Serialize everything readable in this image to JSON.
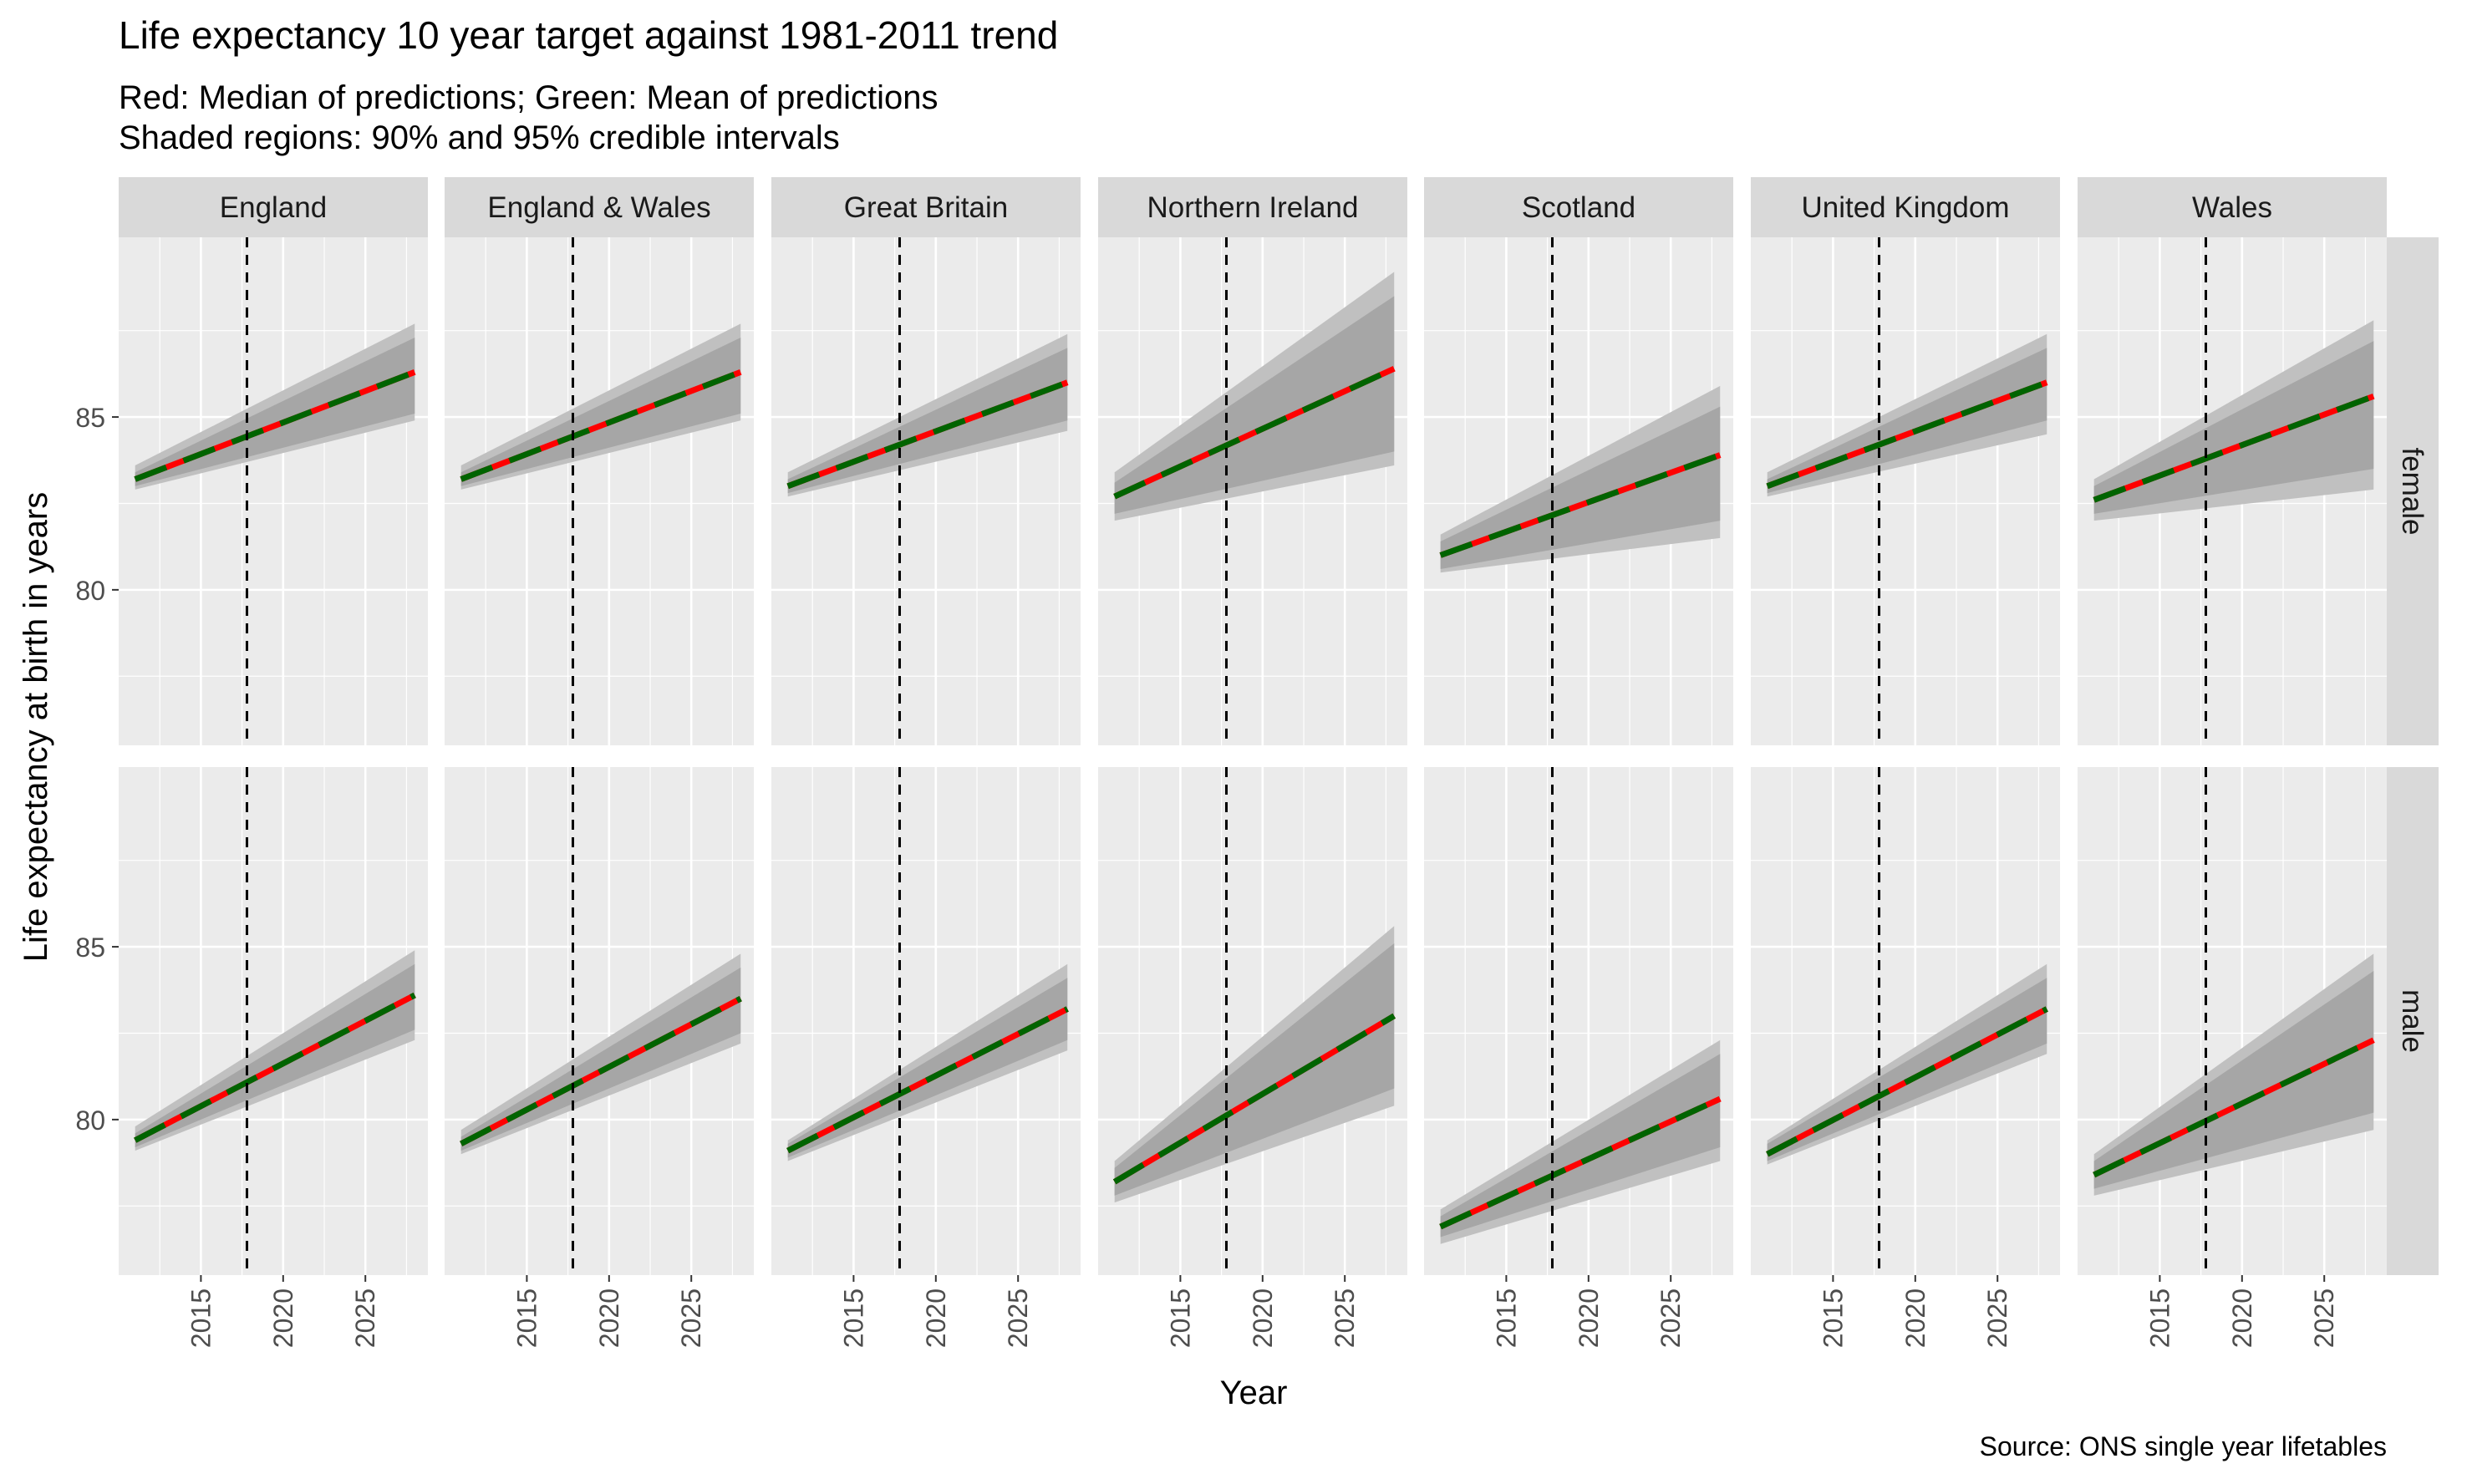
{
  "title": "Life expectancy 10 year target against 1981-2011 trend",
  "subtitle_lines": [
    "Red: Median of predictions; Green: Mean of predictions",
    "Shaded regions: 90% and 95% credible intervals"
  ],
  "caption": "Source: ONS single year lifetables",
  "colors": {
    "panel_bg": "#EBEBEB",
    "strip_bg": "#D9D9D9",
    "grid": "#FFFFFF",
    "band95": "#C0C0C0",
    "band90": "#A6A6A6",
    "median": "#FF0000",
    "mean": "#006400",
    "vline": "#000000",
    "text": "#000000",
    "tick_text": "#4D4D4D"
  },
  "chart_data": {
    "type": "line",
    "xlabel": "Year",
    "ylabel": "Life expectancy at birth in years",
    "xlim": [
      2010,
      2028.8
    ],
    "x_ticks": [
      2015,
      2020,
      2025
    ],
    "vline_x": 2017.8,
    "x_range": [
      2011,
      2028
    ],
    "facet_columns": [
      "England",
      "England & Wales",
      "Great Britain",
      "Northern Ireland",
      "Scotland",
      "United Kingdom",
      "Wales"
    ],
    "facet_rows": [
      {
        "label": "female",
        "ylim": [
          75.5,
          90.2
        ],
        "y_ticks": [
          80,
          85
        ],
        "series": [
          {
            "region": "England",
            "start": 83.2,
            "end": 86.3,
            "lo95": [
              82.9,
              84.9
            ],
            "hi95": [
              83.6,
              87.7
            ],
            "lo90": [
              83.0,
              85.1
            ],
            "hi90": [
              83.4,
              87.3
            ]
          },
          {
            "region": "England & Wales",
            "start": 83.2,
            "end": 86.3,
            "lo95": [
              82.9,
              84.9
            ],
            "hi95": [
              83.6,
              87.7
            ],
            "lo90": [
              83.0,
              85.1
            ],
            "hi90": [
              83.4,
              87.3
            ]
          },
          {
            "region": "Great Britain",
            "start": 83.0,
            "end": 86.0,
            "lo95": [
              82.7,
              84.6
            ],
            "hi95": [
              83.4,
              87.4
            ],
            "lo90": [
              82.8,
              84.9
            ],
            "hi90": [
              83.2,
              87.0
            ]
          },
          {
            "region": "Northern Ireland",
            "start": 82.7,
            "end": 86.4,
            "lo95": [
              82.0,
              83.6
            ],
            "hi95": [
              83.4,
              89.2
            ],
            "lo90": [
              82.2,
              84.0
            ],
            "hi90": [
              83.1,
              88.5
            ]
          },
          {
            "region": "Scotland",
            "start": 81.0,
            "end": 83.9,
            "lo95": [
              80.5,
              81.5
            ],
            "hi95": [
              81.6,
              85.9
            ],
            "lo90": [
              80.6,
              82.0
            ],
            "hi90": [
              81.4,
              85.3
            ]
          },
          {
            "region": "United Kingdom",
            "start": 83.0,
            "end": 86.0,
            "lo95": [
              82.7,
              84.5
            ],
            "hi95": [
              83.4,
              87.4
            ],
            "lo90": [
              82.8,
              84.9
            ],
            "hi90": [
              83.2,
              87.0
            ]
          },
          {
            "region": "Wales",
            "start": 82.6,
            "end": 85.6,
            "lo95": [
              82.0,
              82.9
            ],
            "hi95": [
              83.2,
              87.8
            ],
            "lo90": [
              82.2,
              83.5
            ],
            "hi90": [
              83.0,
              87.2
            ]
          }
        ]
      },
      {
        "label": "male",
        "ylim": [
          75.5,
          90.2
        ],
        "y_ticks": [
          80,
          85
        ],
        "series": [
          {
            "region": "England",
            "start": 79.4,
            "end": 83.6,
            "lo95": [
              79.1,
              82.3
            ],
            "hi95": [
              79.8,
              84.9
            ],
            "lo90": [
              79.2,
              82.6
            ],
            "hi90": [
              79.6,
              84.5
            ]
          },
          {
            "region": "England & Wales",
            "start": 79.3,
            "end": 83.5,
            "lo95": [
              79.0,
              82.2
            ],
            "hi95": [
              79.7,
              84.8
            ],
            "lo90": [
              79.1,
              82.5
            ],
            "hi90": [
              79.5,
              84.4
            ]
          },
          {
            "region": "Great Britain",
            "start": 79.1,
            "end": 83.2,
            "lo95": [
              78.8,
              82.0
            ],
            "hi95": [
              79.4,
              84.5
            ],
            "lo90": [
              78.9,
              82.3
            ],
            "hi90": [
              79.3,
              84.1
            ]
          },
          {
            "region": "Northern Ireland",
            "start": 78.2,
            "end": 83.0,
            "lo95": [
              77.6,
              80.4
            ],
            "hi95": [
              78.8,
              85.6
            ],
            "lo90": [
              77.8,
              80.9
            ],
            "hi90": [
              78.6,
              85.1
            ]
          },
          {
            "region": "Scotland",
            "start": 76.9,
            "end": 80.6,
            "lo95": [
              76.4,
              78.8
            ],
            "hi95": [
              77.4,
              82.3
            ],
            "lo90": [
              76.6,
              79.2
            ],
            "hi90": [
              77.2,
              81.9
            ]
          },
          {
            "region": "United Kingdom",
            "start": 79.0,
            "end": 83.2,
            "lo95": [
              78.7,
              81.9
            ],
            "hi95": [
              79.4,
              84.5
            ],
            "lo90": [
              78.8,
              82.2
            ],
            "hi90": [
              79.3,
              84.1
            ]
          },
          {
            "region": "Wales",
            "start": 78.4,
            "end": 82.3,
            "lo95": [
              77.8,
              79.7
            ],
            "hi95": [
              79.0,
              84.8
            ],
            "lo90": [
              78.0,
              80.2
            ],
            "hi90": [
              78.8,
              84.3
            ]
          }
        ]
      }
    ]
  }
}
